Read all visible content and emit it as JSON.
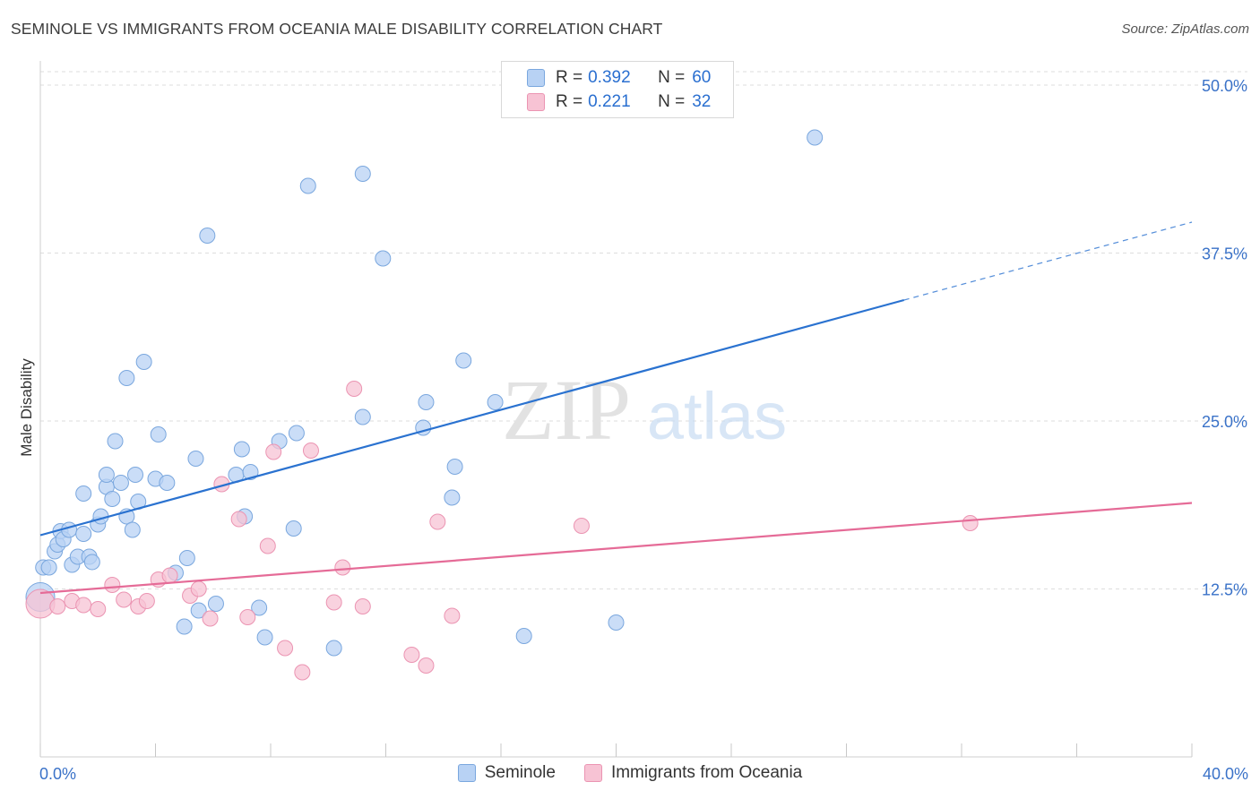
{
  "header": {
    "title": "SEMINOLE VS IMMIGRANTS FROM OCEANIA MALE DISABILITY CORRELATION CHART",
    "source": "Source: ZipAtlas.com"
  },
  "watermark": {
    "zip": "ZIP",
    "atlas": "atlas"
  },
  "legend": {
    "rows": [
      {
        "r_label": "R =",
        "r_value": "0.392",
        "n_label": "N =",
        "n_value": "60"
      },
      {
        "r_label": "R =",
        "r_value": "0.221",
        "n_label": "N =",
        "n_value": "32"
      }
    ]
  },
  "colors": {
    "blue_fill": "#b8d2f4",
    "blue_stroke": "#7aa7de",
    "blue_line": "#2a72d0",
    "pink_fill": "#f7c3d4",
    "pink_stroke": "#eb94b2",
    "pink_line": "#e56b97",
    "grid": "#dddddd",
    "axis_label": "#3a72c8"
  },
  "chart_data": {
    "type": "scatter",
    "title": "SEMINOLE VS IMMIGRANTS FROM OCEANIA MALE DISABILITY CORRELATION CHART",
    "xlabel": "",
    "ylabel": "Male Disability",
    "xlim": [
      0,
      40
    ],
    "ylim": [
      0,
      51
    ],
    "x_tick_labels": [
      "0.0%",
      "40.0%"
    ],
    "y_ticks": [
      12.5,
      25.0,
      37.5,
      50.0
    ],
    "y_tick_labels": [
      "12.5%",
      "25.0%",
      "37.5%",
      "50.0%"
    ],
    "legend_position": "top-center",
    "series": [
      {
        "name": "Seminole",
        "color": "blue",
        "r": 0.392,
        "n": 60,
        "trend": {
          "x0": 0,
          "y0": 16.5,
          "x1": 30,
          "y1": 34.0,
          "dash_x1": 40,
          "dash_y1": 39.8
        },
        "points": [
          [
            0.1,
            14.1
          ],
          [
            0.3,
            14.1
          ],
          [
            0.5,
            15.3
          ],
          [
            0.6,
            15.8
          ],
          [
            0.7,
            16.8
          ],
          [
            0.8,
            16.2
          ],
          [
            1.0,
            16.9
          ],
          [
            1.1,
            14.3
          ],
          [
            1.3,
            14.9
          ],
          [
            1.5,
            16.6
          ],
          [
            1.5,
            19.6
          ],
          [
            1.7,
            14.9
          ],
          [
            1.8,
            14.5
          ],
          [
            2.0,
            17.3
          ],
          [
            2.1,
            17.9
          ],
          [
            2.3,
            20.1
          ],
          [
            2.3,
            21.0
          ],
          [
            2.5,
            19.2
          ],
          [
            2.6,
            23.5
          ],
          [
            2.8,
            20.4
          ],
          [
            3.0,
            17.9
          ],
          [
            3.0,
            28.2
          ],
          [
            3.2,
            16.9
          ],
          [
            3.3,
            21.0
          ],
          [
            3.4,
            19.0
          ],
          [
            3.6,
            29.4
          ],
          [
            4.0,
            20.7
          ],
          [
            4.1,
            24.0
          ],
          [
            4.4,
            20.4
          ],
          [
            4.7,
            13.7
          ],
          [
            5.0,
            9.7
          ],
          [
            5.1,
            14.8
          ],
          [
            5.4,
            22.2
          ],
          [
            5.5,
            10.9
          ],
          [
            5.8,
            38.8
          ],
          [
            6.1,
            11.4
          ],
          [
            6.8,
            21.0
          ],
          [
            7.0,
            22.9
          ],
          [
            7.1,
            17.9
          ],
          [
            7.3,
            21.2
          ],
          [
            7.6,
            11.1
          ],
          [
            7.8,
            8.9
          ],
          [
            8.3,
            23.5
          ],
          [
            8.8,
            17.0
          ],
          [
            8.9,
            24.1
          ],
          [
            9.3,
            42.5
          ],
          [
            10.2,
            8.1
          ],
          [
            11.2,
            43.4
          ],
          [
            11.2,
            25.3
          ],
          [
            11.9,
            37.1
          ],
          [
            13.3,
            24.5
          ],
          [
            13.4,
            26.4
          ],
          [
            14.3,
            19.3
          ],
          [
            14.4,
            21.6
          ],
          [
            14.7,
            29.5
          ],
          [
            15.8,
            26.4
          ],
          [
            16.8,
            9.0
          ],
          [
            20.0,
            10.0
          ],
          [
            26.9,
            46.1
          ],
          [
            0.0,
            11.9
          ]
        ]
      },
      {
        "name": "Immigrants from Oceania",
        "color": "pink",
        "r": 0.221,
        "n": 32,
        "trend": {
          "x0": 0,
          "y0": 12.2,
          "x1": 40,
          "y1": 18.9
        },
        "points": [
          [
            0.0,
            11.4
          ],
          [
            0.6,
            11.2
          ],
          [
            1.1,
            11.6
          ],
          [
            1.5,
            11.3
          ],
          [
            2.0,
            11.0
          ],
          [
            2.5,
            12.8
          ],
          [
            2.9,
            11.7
          ],
          [
            3.4,
            11.2
          ],
          [
            3.7,
            11.6
          ],
          [
            4.1,
            13.2
          ],
          [
            4.5,
            13.5
          ],
          [
            5.2,
            12.0
          ],
          [
            5.5,
            12.5
          ],
          [
            5.9,
            10.3
          ],
          [
            6.3,
            20.3
          ],
          [
            6.9,
            17.7
          ],
          [
            7.2,
            10.4
          ],
          [
            7.9,
            15.7
          ],
          [
            8.1,
            22.7
          ],
          [
            8.5,
            8.1
          ],
          [
            9.1,
            6.3
          ],
          [
            9.4,
            22.8
          ],
          [
            10.2,
            11.5
          ],
          [
            10.5,
            14.1
          ],
          [
            10.9,
            27.4
          ],
          [
            11.2,
            11.2
          ],
          [
            12.9,
            7.6
          ],
          [
            13.4,
            6.8
          ],
          [
            13.8,
            17.5
          ],
          [
            14.3,
            10.5
          ],
          [
            18.8,
            17.2
          ],
          [
            32.3,
            17.4
          ]
        ]
      }
    ]
  },
  "bottom_legend": {
    "items": [
      {
        "label": "Seminole"
      },
      {
        "label": "Immigrants from Oceania"
      }
    ]
  }
}
